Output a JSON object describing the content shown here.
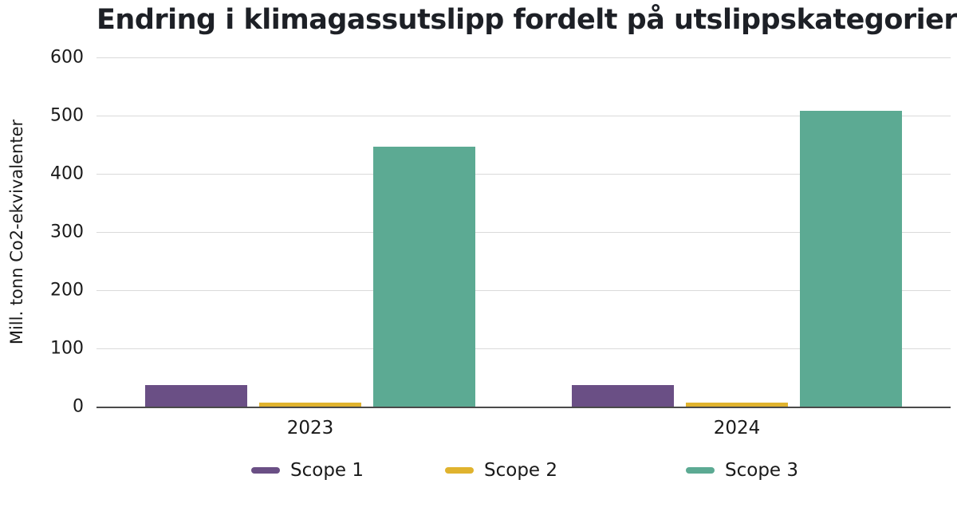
{
  "chart_data": {
    "type": "bar",
    "title": "Endring i klimagassutslipp fordelt på utslippskategorier",
    "ylabel": "Mill. tonn Co2-ekvivalenter",
    "xlabel": "",
    "categories": [
      "2023",
      "2024"
    ],
    "series": [
      {
        "name": "Scope 1",
        "color": "#6a4f85",
        "values": [
          37,
          37
        ]
      },
      {
        "name": "Scope 2",
        "color": "#e0b32e",
        "values": [
          7,
          7
        ]
      },
      {
        "name": "Scope 3",
        "color": "#5caa93",
        "values": [
          447,
          508
        ]
      }
    ],
    "ylim": [
      0,
      600
    ],
    "yticks": [
      0,
      100,
      200,
      300,
      400,
      500,
      600
    ],
    "grid": true,
    "legend_position": "bottom"
  },
  "colors": {
    "gridline": "#dadada",
    "axis_line": "#4a4a4a",
    "text": "#1a1a1a",
    "title": "#1d2026"
  }
}
